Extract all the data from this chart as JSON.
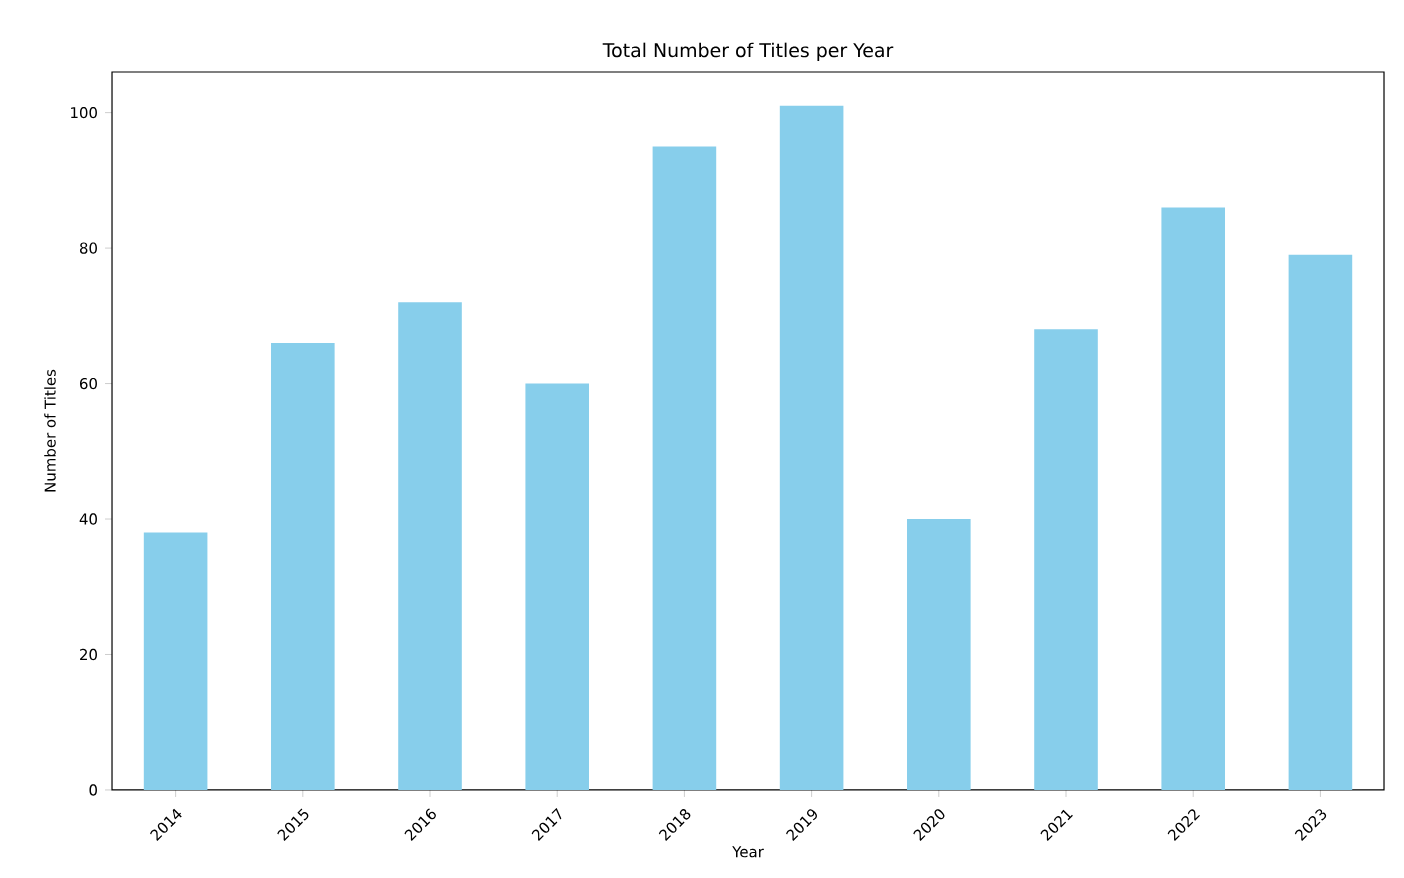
{
  "chart_data": {
    "type": "bar",
    "title": "Total Number of Titles per Year",
    "xlabel": "Year",
    "ylabel": "Number of Titles",
    "categories": [
      "2014",
      "2015",
      "2016",
      "2017",
      "2018",
      "2019",
      "2020",
      "2021",
      "2022",
      "2023"
    ],
    "values": [
      38,
      66,
      72,
      60,
      95,
      101,
      40,
      68,
      86,
      79
    ],
    "color": "#87ceeb",
    "ylim": [
      0,
      106
    ],
    "yticks": [
      0,
      20,
      40,
      60,
      80,
      100
    ],
    "grid": false
  }
}
